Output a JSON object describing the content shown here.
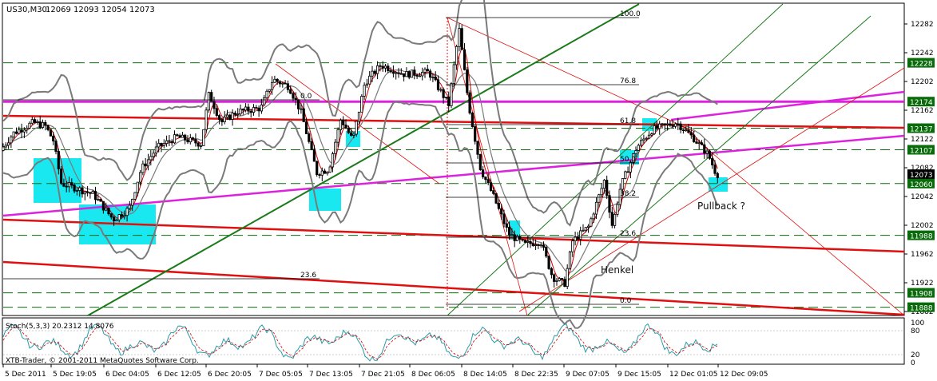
{
  "chart_data": [
    {
      "type": "candlestick",
      "symbol_header": "US30,M30",
      "ohlc_header": "12069 12093 12054 12073",
      "ohlc": {
        "open": 12069,
        "high": 12093,
        "low": 12054,
        "close": 12073
      },
      "y_ticks": [
        12282,
        12242,
        12202,
        12162,
        12122,
        12082,
        12042,
        12002,
        11962,
        11922,
        11882
      ],
      "ylim": [
        11882,
        12302
      ],
      "level_labels": [
        {
          "value": 12228,
          "label": "12228",
          "color": "#0a6b0a"
        },
        {
          "value": 12174,
          "label": "12174",
          "color": "#0a6b0a"
        },
        {
          "value": 12137,
          "label": "12137",
          "color": "#0a6b0a"
        },
        {
          "value": 12107,
          "label": "12107",
          "color": "#0a6b0a"
        },
        {
          "value": 12073,
          "label": "12073",
          "color": "#000000"
        },
        {
          "value": 12060,
          "label": "12060",
          "color": "#0a6b0a"
        },
        {
          "value": 11988,
          "label": "11988",
          "color": "#0a6b0a"
        },
        {
          "value": 11908,
          "label": "11908",
          "color": "#0a6b0a"
        },
        {
          "value": 11888,
          "label": "11888",
          "color": "#0a6b0a"
        }
      ],
      "fib_labels": [
        "100.0",
        "76.8",
        "61.8",
        "50.0",
        "38.2",
        "23.6",
        "0.0",
        "0.0",
        "23.6"
      ],
      "annotations": [
        "Pullback ?",
        "Henkel"
      ],
      "colors": {
        "candle": "#000000",
        "bollinger": "#7a7a7a",
        "ma": "#cc0000",
        "trend_red": "#e01010",
        "trend_magenta": "#dd22dd",
        "trend_green": "#1a7a1a",
        "box": "#00e5ee",
        "dashed_level": "#0a6b0a"
      }
    },
    {
      "type": "line",
      "title": "Stoch(5,3,3) 20.2312 14.8076",
      "series": [
        {
          "name": "main",
          "color": "#2a9aa8"
        },
        {
          "name": "signal",
          "color": "#cc0000"
        }
      ],
      "y_ticks": [
        100,
        80,
        20,
        0
      ],
      "ylim": [
        0,
        100
      ]
    }
  ],
  "x_ticks": [
    "5 Dec 2011",
    "5 Dec 19:05",
    "6 Dec 04:05",
    "6 Dec 12:05",
    "6 Dec 20:05",
    "7 Dec 05:05",
    "7 Dec 13:05",
    "7 Dec 21:05",
    "8 Dec 06:05",
    "8 Dec 14:05",
    "8 Dec 22:35",
    "9 Dec 07:05",
    "9 Dec 15:05",
    "12 Dec 01:05",
    "12 Dec 09:05"
  ],
  "watermark": "XTB-Trader, © 2001-2011 MetaQuotes Software Corp."
}
